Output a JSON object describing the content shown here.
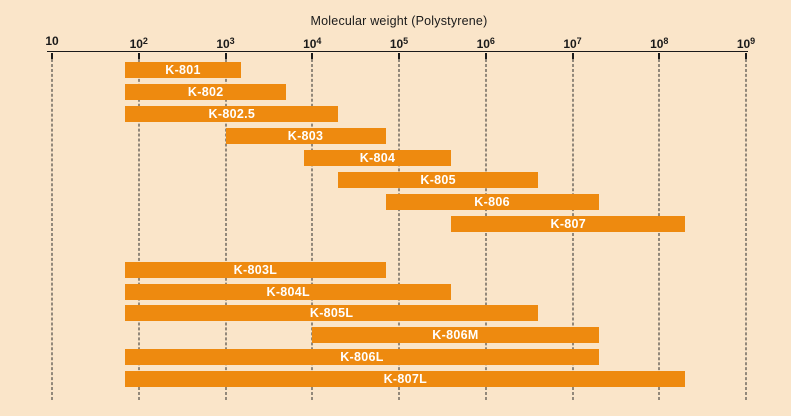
{
  "chart_data": {
    "type": "bar",
    "variant": "horizontal-range-bars-log-x",
    "title": "Molecular weight (Polystyrene)",
    "x_axis": {
      "scale": "log10",
      "min": 10,
      "max": 1000000000,
      "tick_base": "10",
      "tick_exponents": [
        1,
        2,
        3,
        4,
        5,
        6,
        7,
        8,
        9
      ],
      "tick_labels": [
        "10",
        "10^2",
        "10^3",
        "10^4",
        "10^5",
        "10^6",
        "10^7",
        "10^8",
        "10^9"
      ]
    },
    "grid": "dashed-vertical-line-per-decade",
    "legend": "none",
    "colors": {
      "bar": "#EE8A0F",
      "background": "#FAE5C9",
      "bar_label_text": "#FFFFFF",
      "axis_text": "#1A1A1A"
    },
    "groups": [
      {
        "id": "upper",
        "series": [
          {
            "name": "K-801",
            "range": [
              70,
              1500
            ]
          },
          {
            "name": "K-802",
            "range": [
              70,
              5000
            ]
          },
          {
            "name": "K-802.5",
            "range": [
              70,
              20000
            ]
          },
          {
            "name": "K-803",
            "range": [
              1000,
              70000
            ]
          },
          {
            "name": "K-804",
            "range": [
              8000,
              400000
            ]
          },
          {
            "name": "K-805",
            "range": [
              20000,
              4000000
            ]
          },
          {
            "name": "K-806",
            "range": [
              70000,
              20000000
            ]
          },
          {
            "name": "K-807",
            "range": [
              400000,
              200000000
            ]
          }
        ]
      },
      {
        "id": "lower",
        "series": [
          {
            "name": "K-803L",
            "range": [
              70,
              70000
            ]
          },
          {
            "name": "K-804L",
            "range": [
              70,
              400000
            ]
          },
          {
            "name": "K-805L",
            "range": [
              70,
              4000000
            ]
          },
          {
            "name": "K-806M",
            "range": [
              10000,
              20000000
            ]
          },
          {
            "name": "K-806L",
            "range": [
              70,
              20000000
            ]
          },
          {
            "name": "K-807L",
            "range": [
              70,
              200000000
            ]
          }
        ]
      }
    ]
  }
}
